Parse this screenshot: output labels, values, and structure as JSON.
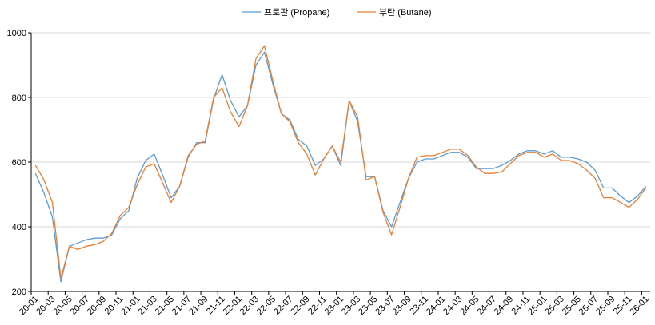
{
  "chart_data": {
    "type": "line",
    "title": "",
    "xlabel": "",
    "ylabel": "",
    "ylim": [
      200,
      1000
    ],
    "yticks": [
      200,
      400,
      600,
      800,
      1000
    ],
    "grid": true,
    "legend_position": "top",
    "x": [
      "20-01",
      "20-02",
      "20-03",
      "20-04",
      "20-05",
      "20-06",
      "20-07",
      "20-08",
      "20-09",
      "20-10",
      "20-11",
      "20-12",
      "21-01",
      "21-02",
      "21-03",
      "21-04",
      "21-05",
      "21-06",
      "21-07",
      "21-08",
      "21-09",
      "21-10",
      "21-11",
      "21-12",
      "22-01",
      "22-02",
      "22-03",
      "22-04",
      "22-05",
      "22-06",
      "22-07",
      "22-08",
      "22-09",
      "22-10",
      "22-11",
      "22-12",
      "23-01",
      "23-02",
      "23-03",
      "23-04",
      "23-05",
      "23-06",
      "23-07",
      "23-08",
      "23-09",
      "23-10",
      "23-11",
      "23-12",
      "24-01",
      "24-02",
      "24-03",
      "24-04",
      "24-05",
      "24-06",
      "24-07",
      "24-08",
      "24-09",
      "24-10",
      "24-11",
      "24-12",
      "25-01",
      "25-02",
      "25-03",
      "25-04",
      "25-05",
      "25-06",
      "25-07",
      "25-08",
      "25-09",
      "25-10",
      "25-11",
      "25-12",
      "26-01"
    ],
    "xtick_labels": [
      "20-01",
      "20-03",
      "20-05",
      "20-07",
      "20-09",
      "20-11",
      "21-01",
      "21-03",
      "21-05",
      "21-07",
      "21-09",
      "21-11",
      "22-01",
      "22-03",
      "22-05",
      "22-07",
      "22-09",
      "22-11",
      "23-01",
      "23-03",
      "23-05",
      "23-07",
      "23-09",
      "23-11",
      "24-01",
      "24-03",
      "24-05",
      "24-07",
      "24-09",
      "24-11",
      "25-01",
      "25-03",
      "25-05",
      "25-07",
      "25-09",
      "25-11",
      "26-01"
    ],
    "series": [
      {
        "name": "프로판 (Propane)",
        "color": "#5B9BD5",
        "values": [
          565,
          505,
          430,
          230,
          340,
          350,
          360,
          365,
          365,
          375,
          425,
          450,
          550,
          605,
          625,
          560,
          490,
          525,
          615,
          660,
          660,
          795,
          870,
          790,
          740,
          775,
          900,
          940,
          840,
          750,
          730,
          670,
          650,
          590,
          610,
          650,
          590,
          790,
          725,
          555,
          555,
          450,
          400,
          475,
          550,
          600,
          610,
          610,
          620,
          630,
          630,
          615,
          580,
          580,
          580,
          590,
          605,
          625,
          635,
          635,
          625,
          635,
          615,
          615,
          610,
          600,
          575,
          520,
          520,
          495,
          475,
          495,
          525
        ]
      },
      {
        "name": "부탄 (Butane)",
        "color": "#ED7D31",
        "values": [
          590,
          545,
          475,
          240,
          340,
          330,
          340,
          345,
          355,
          380,
          435,
          460,
          530,
          585,
          595,
          535,
          475,
          525,
          620,
          655,
          665,
          800,
          830,
          755,
          710,
          775,
          920,
          960,
          850,
          750,
          725,
          660,
          625,
          560,
          610,
          650,
          600,
          790,
          740,
          545,
          555,
          445,
          375,
          460,
          550,
          615,
          620,
          620,
          630,
          640,
          640,
          620,
          585,
          565,
          565,
          570,
          595,
          620,
          630,
          630,
          615,
          625,
          605,
          605,
          595,
          575,
          550,
          490,
          490,
          475,
          460,
          485,
          520
        ]
      }
    ]
  }
}
